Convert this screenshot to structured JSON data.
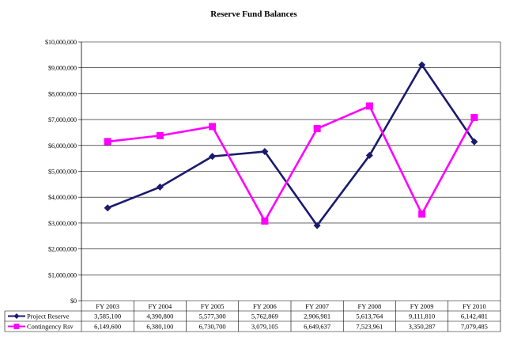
{
  "chart_data": {
    "type": "line",
    "title": "Reserve Fund Balances",
    "categories": [
      "FY 2003",
      "FY 2004",
      "FY 2005",
      "FY 2006",
      "FY 2007",
      "FY 2008",
      "FY 2009",
      "FY 2010"
    ],
    "ylim": [
      0,
      10000000
    ],
    "yticks": [
      0,
      1000000,
      2000000,
      3000000,
      4000000,
      5000000,
      6000000,
      7000000,
      8000000,
      9000000,
      10000000
    ],
    "ytick_labels": [
      "$0",
      "$1,000,000",
      "$2,000,000",
      "$3,000,000",
      "$4,000,000",
      "$5,000,000",
      "$6,000,000",
      "$7,000,000",
      "$8,000,000",
      "$9,000,000",
      "$10,000,000"
    ],
    "grid": "horizontal",
    "legend": "data table below plot",
    "series": [
      {
        "name": "Project Reserve",
        "color": "#1a1a6e",
        "marker": "diamond",
        "values": [
          3585100,
          4390800,
          5577300,
          5762869,
          2906981,
          5613764,
          9111810,
          6142481
        ],
        "labels": [
          "3,585,100",
          "4,390,800",
          "5,577,300",
          "5,762,869",
          "2,906,981",
          "5,613,764",
          "9,111,810",
          "6,142,481"
        ]
      },
      {
        "name": "Contingency Rsv",
        "color": "#ff00ff",
        "marker": "square",
        "values": [
          6149600,
          6380100,
          6730700,
          3079105,
          6649637,
          7523961,
          3350287,
          7079485
        ],
        "labels": [
          "6,149,600",
          "6,380,100",
          "6,730,700",
          "3,079,105",
          "6,649,637",
          "7,523,961",
          "3,350,287",
          "7,079,485"
        ]
      }
    ]
  }
}
